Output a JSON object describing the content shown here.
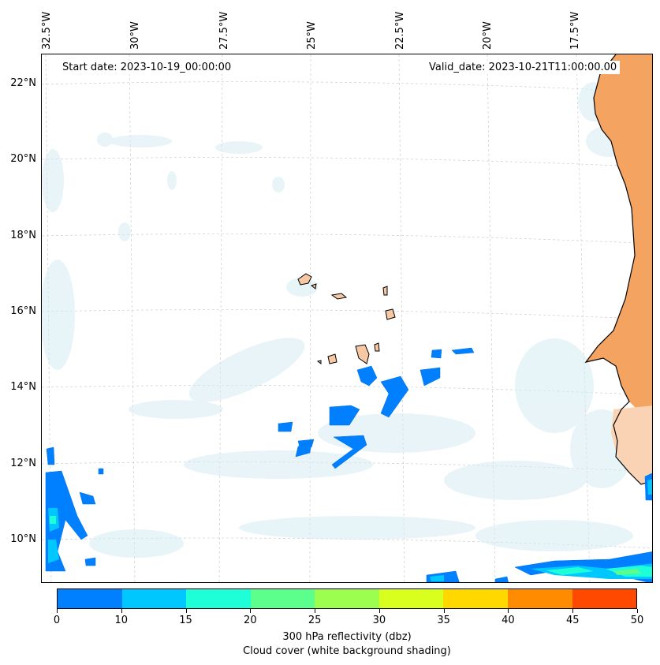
{
  "map": {
    "start_date": "Start date: 2023-10-19_00:00:00",
    "valid_date": "Valid_date: 2023-10-21T11:00:00.00",
    "lon_labels": [
      "32.5°W",
      "30°W",
      "27.5°W",
      "25°W",
      "22.5°W",
      "20°W",
      "17.5°W"
    ],
    "lat_labels": [
      "22°N",
      "20°N",
      "18°N",
      "16°N",
      "14°N",
      "12°N",
      "10°N"
    ]
  },
  "colors": {
    "land_africa": "#f4a460",
    "land_islands": "#f6c8a4",
    "cloud": "#d6ecf3",
    "coast": "#000000"
  },
  "colorbar": {
    "ticks": [
      "0",
      "10",
      "15",
      "20",
      "25",
      "30",
      "35",
      "40",
      "45",
      "50"
    ],
    "colors": [
      "#0080ff",
      "#00c8ff",
      "#1effd8",
      "#5cff8c",
      "#9cff50",
      "#d8ff1e",
      "#ffd800",
      "#ff8c00",
      "#ff4800"
    ],
    "label_line1": "300 hPa reflectivity (dbz)",
    "label_line2": "Cloud cover (white background shading)"
  }
}
